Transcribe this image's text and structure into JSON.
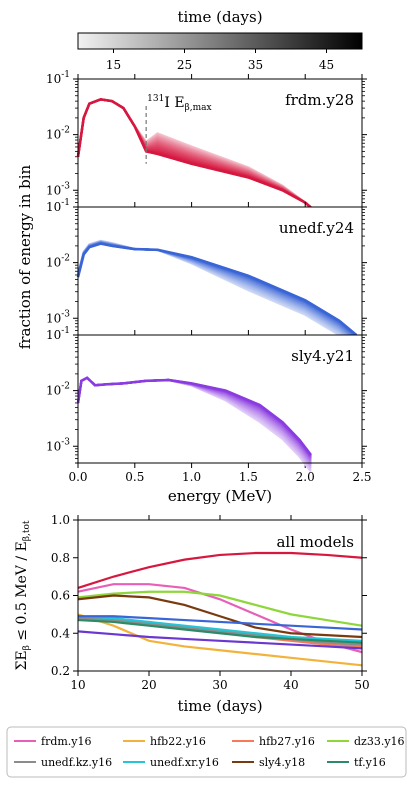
{
  "colorbar": {
    "title": "time (days)",
    "ticks": [
      "15",
      "25",
      "35",
      "45"
    ]
  },
  "shared_ylabel": "fraction of energy in bin",
  "annotation": {
    "prefix": "131",
    "text": "I E",
    "sub": "β,max"
  },
  "chart_data": [
    {
      "type": "line",
      "panel": "frdm.y28",
      "title": "frdm.y28",
      "xlabel": "",
      "yscale": "log",
      "ylim": [
        0.0005,
        0.1
      ],
      "xlim": [
        0,
        2.5
      ],
      "yticklabels": [
        "10^-1",
        "10^-2",
        "10^-3"
      ],
      "color": "#d6173f",
      "series": [
        {
          "time_days": 10,
          "x": [
            0.0,
            0.05,
            0.1,
            0.2,
            0.3,
            0.4,
            0.5,
            0.6,
            0.7,
            1.0,
            1.5,
            1.8,
            2.0,
            2.1
          ],
          "y": [
            0.004,
            0.02,
            0.036,
            0.043,
            0.04,
            0.03,
            0.014,
            0.005,
            0.0045,
            0.003,
            0.0017,
            0.001,
            0.0006,
            0.0004
          ]
        },
        {
          "time_days": 50,
          "x": [
            0.0,
            0.05,
            0.1,
            0.2,
            0.3,
            0.4,
            0.5,
            0.6,
            0.7,
            1.0,
            1.5,
            1.8,
            2.0,
            2.1
          ],
          "y": [
            0.004,
            0.02,
            0.036,
            0.043,
            0.04,
            0.03,
            0.014,
            0.005,
            0.0045,
            0.003,
            0.0017,
            0.001,
            0.0006,
            0.0004
          ]
        }
      ]
    },
    {
      "type": "line",
      "panel": "unedf.y24",
      "title": "unedf.y24",
      "xlabel": "",
      "yscale": "log",
      "ylim": [
        0.0005,
        0.1
      ],
      "xlim": [
        0,
        2.5
      ],
      "yticklabels": [
        "10^-1",
        "10^-2",
        "10^-3"
      ],
      "color": "#3a65d6",
      "series": [
        {
          "time_days": 10,
          "x": [
            0.0,
            0.05,
            0.1,
            0.2,
            0.3,
            0.5,
            0.7,
            1.0,
            1.5,
            2.0,
            2.3,
            2.45
          ],
          "y": [
            0.0055,
            0.014,
            0.019,
            0.022,
            0.02,
            0.0175,
            0.017,
            0.0125,
            0.0058,
            0.0021,
            0.0009,
            0.0005
          ]
        },
        {
          "time_days": 50,
          "x": [
            0.0,
            0.05,
            0.1,
            0.2,
            0.3,
            0.5,
            0.7,
            1.0,
            1.5,
            2.0,
            2.3,
            2.45
          ],
          "y": [
            0.0055,
            0.014,
            0.019,
            0.022,
            0.02,
            0.0175,
            0.017,
            0.0125,
            0.0058,
            0.0021,
            0.0009,
            0.0005
          ]
        }
      ]
    },
    {
      "type": "line",
      "panel": "sly4.y21",
      "title": "sly4.y21",
      "xlabel": "energy (MeV)",
      "yscale": "log",
      "ylim": [
        0.0005,
        0.1
      ],
      "xlim": [
        0,
        2.5
      ],
      "xticklabels": [
        "0.0",
        "0.5",
        "1.0",
        "1.5",
        "2.0",
        "2.5"
      ],
      "yticklabels": [
        "10^-1",
        "10^-2",
        "10^-3"
      ],
      "color": "#8b3ce0",
      "series": [
        {
          "time_days": 10,
          "x": [
            0.0,
            0.03,
            0.08,
            0.15,
            0.25,
            0.4,
            0.6,
            0.8,
            1.0,
            1.3,
            1.6,
            1.8,
            1.95,
            2.05
          ],
          "y": [
            0.006,
            0.015,
            0.017,
            0.0125,
            0.013,
            0.0135,
            0.015,
            0.0155,
            0.0135,
            0.01,
            0.0055,
            0.0027,
            0.0013,
            0.0007
          ]
        },
        {
          "time_days": 50,
          "x": [
            0.0,
            0.03,
            0.08,
            0.15,
            0.25,
            0.4,
            0.6,
            0.8,
            1.0,
            1.3,
            1.6,
            1.8,
            1.95,
            2.05
          ],
          "y": [
            0.006,
            0.015,
            0.017,
            0.0125,
            0.013,
            0.0135,
            0.015,
            0.0155,
            0.0135,
            0.01,
            0.0055,
            0.0027,
            0.0013,
            0.0007
          ]
        }
      ]
    },
    {
      "type": "line",
      "panel": "all models",
      "title": "all models",
      "xlabel": "time (days)",
      "ylabel": "ΣE_β ≤ 0.5 MeV / E_β,tot",
      "xlim": [
        10,
        50
      ],
      "ylim": [
        0.2,
        1.0
      ],
      "xticklabels": [
        "10",
        "20",
        "30",
        "40",
        "50"
      ],
      "yticklabels": [
        "0.2",
        "0.4",
        "0.6",
        "0.8",
        "1.0"
      ],
      "x": [
        10,
        15,
        20,
        25,
        30,
        35,
        40,
        45,
        50
      ],
      "series": [
        {
          "name": "frdm.y28",
          "legend": false,
          "color": "#d6173f",
          "values": [
            0.64,
            0.7,
            0.75,
            0.79,
            0.815,
            0.825,
            0.825,
            0.815,
            0.8
          ]
        },
        {
          "name": "frdm.y16",
          "color": "#e85fb8",
          "values": [
            0.62,
            0.66,
            0.66,
            0.64,
            0.58,
            0.5,
            0.42,
            0.35,
            0.3
          ]
        },
        {
          "name": "hfb22.y16",
          "color": "#f2b33d",
          "values": [
            0.5,
            0.44,
            0.36,
            0.33,
            0.31,
            0.29,
            0.27,
            0.25,
            0.23
          ]
        },
        {
          "name": "hfb27.y16",
          "color": "#f47a5a",
          "values": [
            0.48,
            0.47,
            0.46,
            0.43,
            0.41,
            0.38,
            0.36,
            0.34,
            0.33
          ]
        },
        {
          "name": "dz33.y16",
          "color": "#8ed63c",
          "values": [
            0.59,
            0.61,
            0.62,
            0.62,
            0.6,
            0.55,
            0.5,
            0.47,
            0.44
          ]
        },
        {
          "name": "unedf.kz.y16",
          "color": "#8c8c8c",
          "values": [
            0.48,
            0.47,
            0.45,
            0.43,
            0.41,
            0.39,
            0.37,
            0.35,
            0.34
          ]
        },
        {
          "name": "unedf.xr.y16",
          "color": "#27c3d6",
          "values": [
            0.49,
            0.48,
            0.46,
            0.44,
            0.42,
            0.4,
            0.38,
            0.37,
            0.36
          ]
        },
        {
          "name": "sly4.y18",
          "color": "#7a3a10",
          "values": [
            0.58,
            0.6,
            0.59,
            0.55,
            0.49,
            0.43,
            0.4,
            0.39,
            0.38
          ]
        },
        {
          "name": "tf.y16",
          "color": "#2c8a66",
          "values": [
            0.47,
            0.46,
            0.44,
            0.42,
            0.4,
            0.38,
            0.37,
            0.36,
            0.35
          ]
        },
        {
          "name": "unedf.y24",
          "legend": false,
          "color": "#3a65d6",
          "values": [
            0.49,
            0.49,
            0.48,
            0.47,
            0.46,
            0.45,
            0.44,
            0.43,
            0.42
          ]
        },
        {
          "name": "sly4.y21",
          "legend": false,
          "color": "#6a38d0",
          "values": [
            0.41,
            0.395,
            0.38,
            0.37,
            0.36,
            0.35,
            0.34,
            0.33,
            0.32
          ]
        }
      ]
    }
  ]
}
